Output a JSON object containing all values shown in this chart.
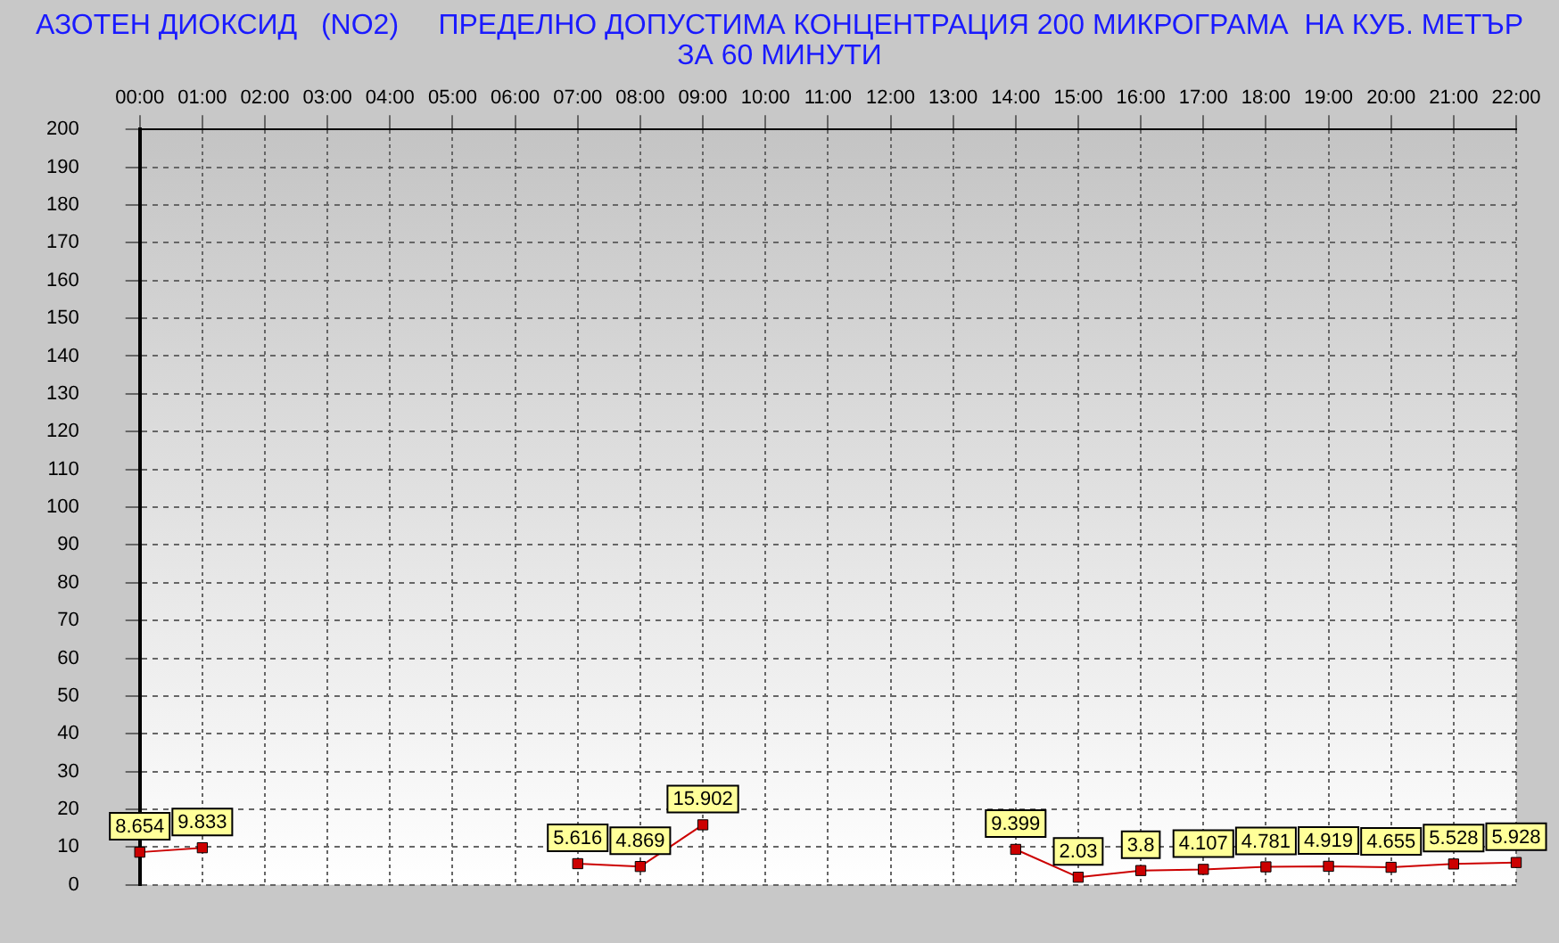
{
  "chart_data": {
    "type": "line",
    "title": "АЗОТЕН ДИОКСИД   (NO2)     ПРЕДЕЛНО ДОПУСТИМА КОНЦЕНТРАЦИЯ 200 МИКРОГРАМА  НА КУБ. МЕТЪР\nЗА 60 МИНУТИ",
    "categories": [
      "00:00",
      "01:00",
      "02:00",
      "03:00",
      "04:00",
      "05:00",
      "06:00",
      "07:00",
      "08:00",
      "09:00",
      "10:00",
      "11:00",
      "12:00",
      "13:00",
      "14:00",
      "15:00",
      "16:00",
      "17:00",
      "18:00",
      "19:00",
      "20:00",
      "21:00",
      "22:00"
    ],
    "series": [
      {
        "color": "#cc0000",
        "values": [
          8.654,
          9.833,
          null,
          null,
          null,
          null,
          null,
          5.616,
          4.869,
          15.902,
          null,
          null,
          null,
          null,
          9.399,
          2.03,
          3.8,
          4.107,
          4.781,
          4.919,
          4.655,
          5.528,
          5.928
        ]
      }
    ],
    "ylim": [
      0,
      200
    ],
    "yticks": [
      0,
      10,
      20,
      30,
      40,
      50,
      60,
      70,
      80,
      90,
      100,
      110,
      120,
      130,
      140,
      150,
      160,
      170,
      180,
      190,
      200
    ],
    "grid": true,
    "legend": false,
    "marker": "square",
    "line_style": "solid",
    "data_labels": true
  }
}
